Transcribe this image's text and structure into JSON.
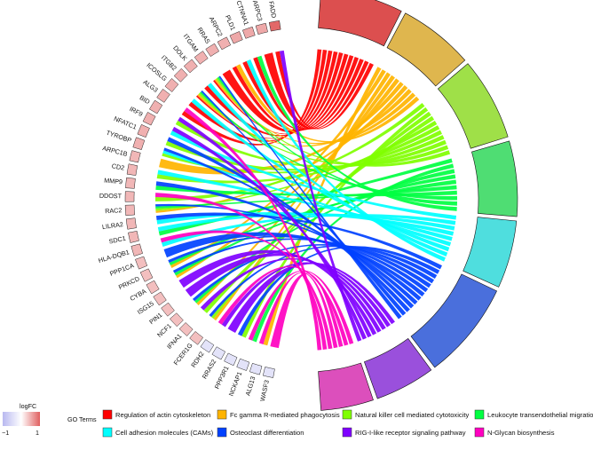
{
  "chart_data": {
    "type": "chord",
    "title": "",
    "genes": [
      {
        "name": "FADD",
        "logFC": 0.95
      },
      {
        "name": "ARPC3",
        "logFC": 0.55
      },
      {
        "name": "CTNNA1",
        "logFC": 0.55
      },
      {
        "name": "PLD1",
        "logFC": 0.55
      },
      {
        "name": "ARPC2",
        "logFC": 0.5
      },
      {
        "name": "RRAS",
        "logFC": 0.5
      },
      {
        "name": "ITGAM",
        "logFC": 0.5
      },
      {
        "name": "DOLK",
        "logFC": 0.5
      },
      {
        "name": "ITGB2",
        "logFC": 0.5
      },
      {
        "name": "ICOSLG",
        "logFC": 0.5
      },
      {
        "name": "ALG3",
        "logFC": 0.5
      },
      {
        "name": "BID",
        "logFC": 0.5
      },
      {
        "name": "IRF9",
        "logFC": 0.5
      },
      {
        "name": "NFATC1",
        "logFC": 0.5
      },
      {
        "name": "TYROBP",
        "logFC": 0.5
      },
      {
        "name": "ARPC1B",
        "logFC": 0.45
      },
      {
        "name": "CD2",
        "logFC": 0.45
      },
      {
        "name": "MMP9",
        "logFC": 0.45
      },
      {
        "name": "DDOST",
        "logFC": 0.45
      },
      {
        "name": "RAC2",
        "logFC": 0.45
      },
      {
        "name": "LILRA2",
        "logFC": 0.45
      },
      {
        "name": "SDC1",
        "logFC": 0.45
      },
      {
        "name": "HLA-DQB1",
        "logFC": 0.45
      },
      {
        "name": "PPP1CA",
        "logFC": 0.4
      },
      {
        "name": "PRKCD",
        "logFC": 0.4
      },
      {
        "name": "CYBA",
        "logFC": 0.4
      },
      {
        "name": "ISG15",
        "logFC": 0.4
      },
      {
        "name": "PIN1",
        "logFC": 0.4
      },
      {
        "name": "NCF1",
        "logFC": 0.4
      },
      {
        "name": "IFNA1",
        "logFC": 0.4
      },
      {
        "name": "FCER1G",
        "logFC": 0.4
      },
      {
        "name": "RDH2",
        "logFC": -0.4
      },
      {
        "name": "RRAS2",
        "logFC": -0.4
      },
      {
        "name": "PPP3R1",
        "logFC": -0.4
      },
      {
        "name": "NCKAP1",
        "logFC": -0.4
      },
      {
        "name": "ALG13",
        "logFC": -0.4
      },
      {
        "name": "WASF3",
        "logFC": -0.4
      }
    ],
    "terms": [
      {
        "name": "Regulation of actin cytoskeleton",
        "color": "#ff0000",
        "band_color": "#dc4f4f"
      },
      {
        "name": "Fc gamma R-mediated phagocytosis",
        "color": "#ffb400",
        "band_color": "#dfb64e"
      },
      {
        "name": "Natural killer cell mediated cytotoxicity",
        "color": "#80ff00",
        "band_color": "#9fe048"
      },
      {
        "name": "Leukocyte transendothelial migration",
        "color": "#00ff41",
        "band_color": "#4fdd73"
      },
      {
        "name": "Cell adhesion molecules (CAMs)",
        "color": "#00ffff",
        "band_color": "#4fdede"
      },
      {
        "name": "Osteoclast differentiation",
        "color": "#0041ff",
        "band_color": "#4a6fdc"
      },
      {
        "name": "RIG-I-like receptor signaling pathway",
        "color": "#7f00ff",
        "band_color": "#9a50dc"
      },
      {
        "name": "N-Glycan biosynthesis",
        "color": "#ff00c0",
        "band_color": "#dc4fbc"
      }
    ],
    "links": [
      [
        0,
        0
      ],
      [
        1,
        0
      ],
      [
        2,
        0
      ],
      [
        3,
        0
      ],
      [
        4,
        0
      ],
      [
        5,
        0
      ],
      [
        6,
        0
      ],
      [
        7,
        0
      ],
      [
        8,
        0
      ],
      [
        9,
        0
      ],
      [
        10,
        0
      ],
      [
        4,
        1
      ],
      [
        6,
        1
      ],
      [
        8,
        1
      ],
      [
        19,
        1
      ],
      [
        15,
        1
      ],
      [
        25,
        1
      ],
      [
        28,
        1
      ],
      [
        30,
        1
      ],
      [
        24,
        1
      ],
      [
        35,
        1
      ],
      [
        6,
        2
      ],
      [
        8,
        2
      ],
      [
        11,
        2
      ],
      [
        13,
        2
      ],
      [
        14,
        2
      ],
      [
        16,
        2
      ],
      [
        19,
        2
      ],
      [
        29,
        2
      ],
      [
        30,
        2
      ],
      [
        33,
        2
      ],
      [
        18,
        2
      ],
      [
        2,
        3
      ],
      [
        6,
        3
      ],
      [
        8,
        3
      ],
      [
        17,
        3
      ],
      [
        19,
        3
      ],
      [
        24,
        3
      ],
      [
        25,
        3
      ],
      [
        28,
        3
      ],
      [
        34,
        3
      ],
      [
        21,
        3
      ],
      [
        3,
        4
      ],
      [
        7,
        4
      ],
      [
        9,
        4
      ],
      [
        14,
        4
      ],
      [
        16,
        4
      ],
      [
        20,
        4
      ],
      [
        21,
        4
      ],
      [
        22,
        4
      ],
      [
        12,
        4
      ],
      [
        6,
        5
      ],
      [
        8,
        5
      ],
      [
        13,
        5
      ],
      [
        14,
        5
      ],
      [
        17,
        5
      ],
      [
        19,
        5
      ],
      [
        23,
        5
      ],
      [
        24,
        5
      ],
      [
        25,
        5
      ],
      [
        28,
        5
      ],
      [
        30,
        5
      ],
      [
        33,
        5
      ],
      [
        20,
        5
      ],
      [
        0,
        6
      ],
      [
        11,
        6
      ],
      [
        12,
        6
      ],
      [
        26,
        6
      ],
      [
        27,
        6
      ],
      [
        29,
        6
      ],
      [
        31,
        6
      ],
      [
        32,
        6
      ],
      [
        10,
        7
      ],
      [
        18,
        7
      ],
      [
        22,
        7
      ],
      [
        35,
        7
      ],
      [
        36,
        7
      ],
      [
        31,
        7
      ],
      [
        34,
        7
      ]
    ],
    "legend": {
      "logfc_title": "logFC",
      "logfc_min_label": "−1",
      "logfc_max_label": "1",
      "logfc_range": [
        -1,
        1
      ],
      "logfc_colors": {
        "low": "#b8b8f0",
        "mid": "#ffffff",
        "high": "#e06060"
      },
      "terms_title": "GO Terms"
    }
  }
}
